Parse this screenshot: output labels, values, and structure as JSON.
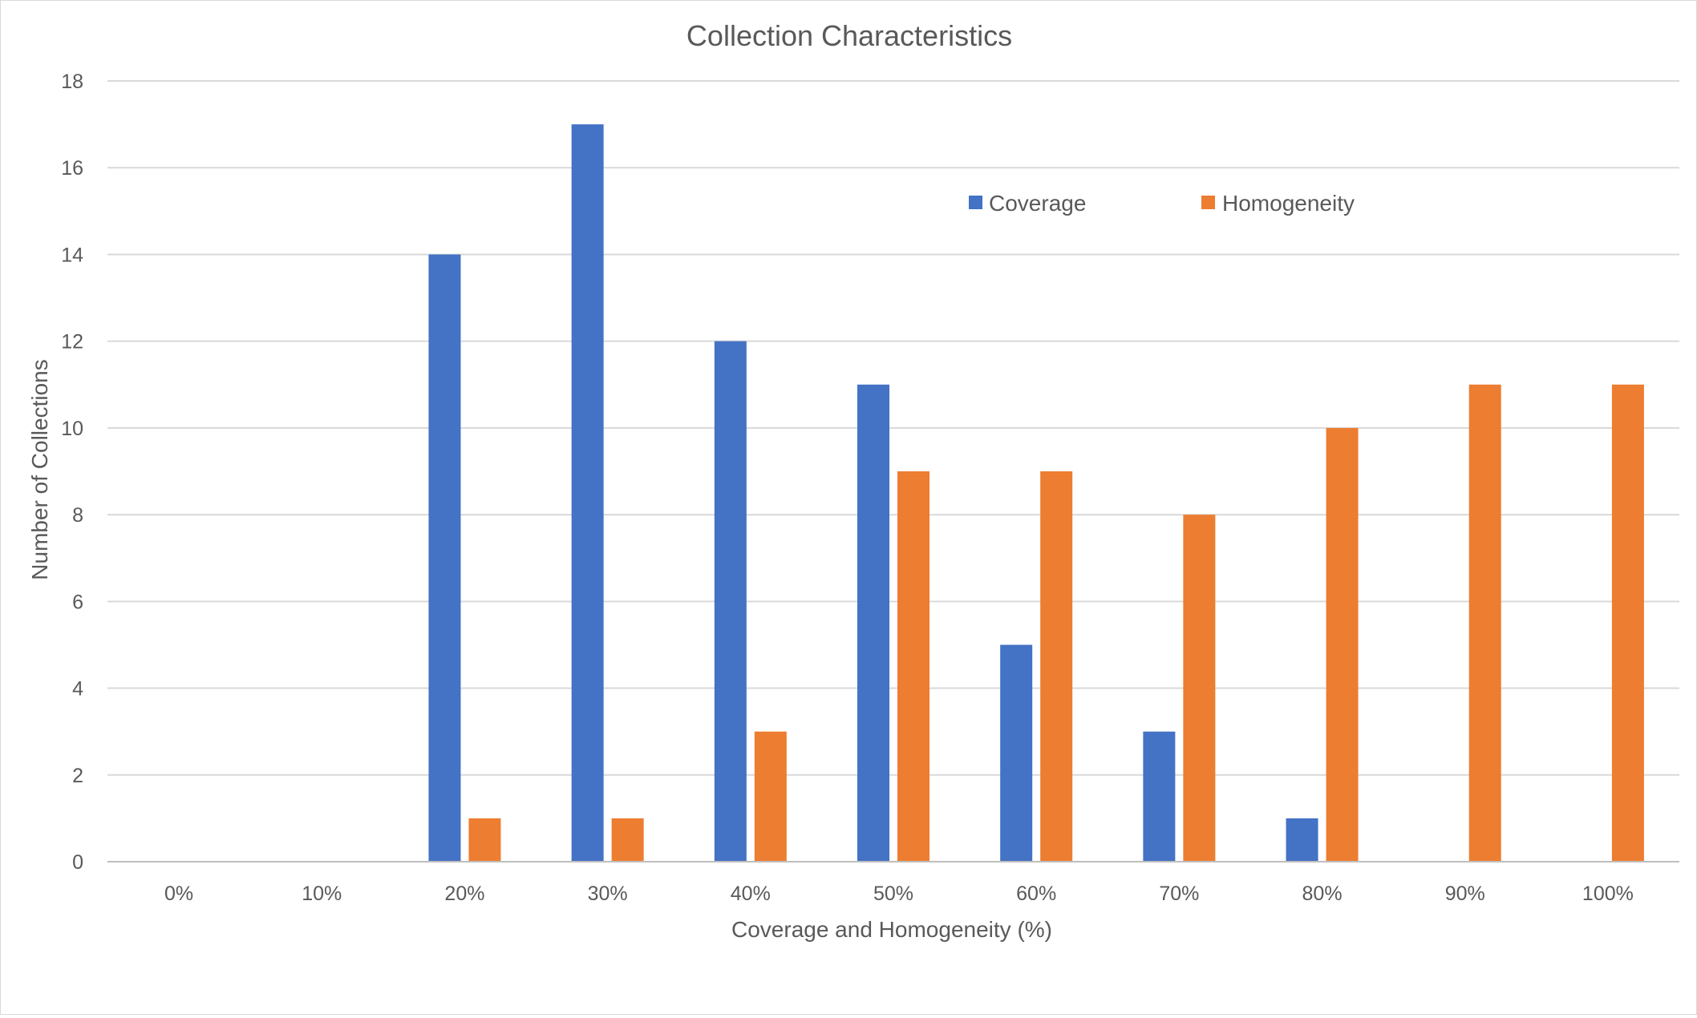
{
  "chart_data": {
    "type": "bar",
    "title": "Collection Characteristics",
    "xlabel": "Coverage and Homogeneity (%)",
    "ylabel": "Number of Collections",
    "categories": [
      "0%",
      "10%",
      "20%",
      "30%",
      "40%",
      "50%",
      "60%",
      "70%",
      "80%",
      "90%",
      "100%"
    ],
    "series": [
      {
        "name": "Coverage",
        "color": "#4472c4",
        "values": [
          0,
          0,
          14,
          17,
          12,
          11,
          5,
          3,
          1,
          0,
          0
        ]
      },
      {
        "name": "Homogeneity",
        "color": "#ed7d31",
        "values": [
          0,
          0,
          1,
          1,
          3,
          9,
          9,
          8,
          10,
          11,
          11
        ]
      }
    ],
    "ylim": [
      0,
      18
    ],
    "yticks": [
      0,
      2,
      4,
      6,
      8,
      10,
      12,
      14,
      16,
      18
    ],
    "grid": true,
    "legend_position": "top-right"
  }
}
